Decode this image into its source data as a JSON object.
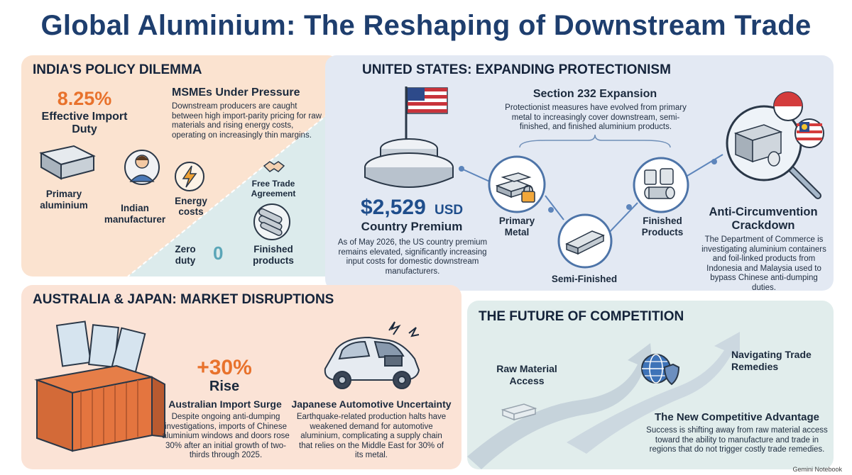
{
  "title": "Global Aluminium: The Reshaping of Downstream Trade",
  "india": {
    "heading": "INDIA'S POLICY DILEMMA",
    "duty_value": "8.25%",
    "duty_label": "Effective Import Duty",
    "msme_title": "MSMEs Under Pressure",
    "msme_text": "Downstream producers are caught between high import-parity pricing for raw materials and rising energy costs, operating on increasingly thin margins.",
    "primary_label": "Primary aluminium",
    "manufacturer_label": "Indian manufacturer",
    "energy_label": "Energy costs",
    "fta_label": "Free Trade Agreement",
    "zero_duty_label": "Zero duty",
    "zero_value": "0",
    "finished_label": "Finished products"
  },
  "us": {
    "heading": "UNITED STATES: EXPANDING PROTECTIONISM",
    "premium_value": "$2,529",
    "premium_unit": "USD",
    "premium_label": "Country Premium",
    "premium_text": "As of May 2026, the US country premium remains elevated, significantly increasing input costs for domestic downstream manufacturers.",
    "section_title": "Section 232 Expansion",
    "section_text": "Protectionist measures have evolved from primary metal to increasingly cover downstream, semi-finished, and finished aluminium products.",
    "primary_metal": "Primary Metal",
    "semi_finished": "Semi-Finished",
    "finished_products": "Finished Products",
    "anti_title": "Anti-Circumvention Crackdown",
    "anti_text": "The Department of Commerce is investigating aluminium containers and foil-linked products from Indonesia and Malaysia used to bypass Chinese anti-dumping duties."
  },
  "aus": {
    "heading": "AUSTRALIA & JAPAN: MARKET DISRUPTIONS",
    "rise_value": "+30%",
    "rise_label": "Rise",
    "surge_title": "Australian Import Surge",
    "surge_text": "Despite ongoing anti-dumping investigations, imports of Chinese aluminium windows and doors rose 30% after an initial growth of two-thirds through 2025.",
    "japan_title": "Japanese Automotive Uncertainty",
    "japan_text": "Earthquake-related production halts have weakened demand for automotive aluminium, complicating a supply chain that relies on the Middle East for 30% of its metal."
  },
  "future": {
    "heading": "THE FUTURE OF COMPETITION",
    "raw_access": "Raw Material Access",
    "navigating": "Navigating Trade Remedies",
    "advantage_title": "The New Competitive Advantage",
    "advantage_text": "Success is shifting away from raw material access toward the ability to manufacture and trade in regions that do not trigger costly trade remedies."
  },
  "footer": "Gemini Notebook",
  "colors": {
    "title": "#1e3e6e",
    "accent_orange": "#e8722c",
    "accent_blue": "#1f4e8c",
    "zero_teal": "#5ba6b8"
  },
  "icons": [
    "aluminium-ingot-icon",
    "manufacturer-icon",
    "lightning-icon",
    "handshake-icon",
    "pipes-icon",
    "us-flag-icon",
    "pedestal-icon",
    "padlock-icon",
    "semi-finished-profile-icon",
    "foil-rolls-icon",
    "magnifier-icon",
    "indonesia-flag-icon",
    "malaysia-flag-icon",
    "container-icon",
    "windows-icon",
    "damaged-car-icon",
    "globe-shield-icon",
    "arrow-path-icon"
  ]
}
